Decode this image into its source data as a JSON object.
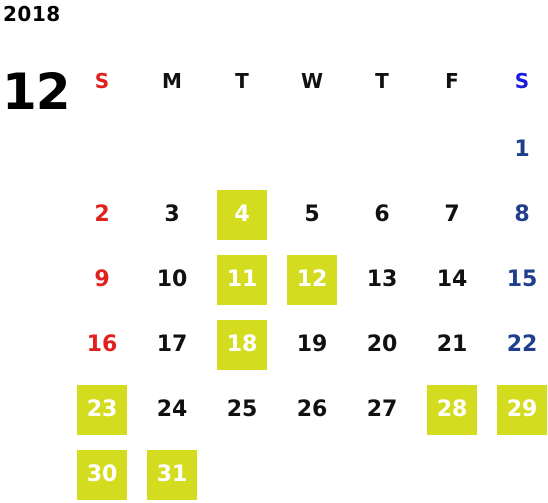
{
  "calendar": {
    "year": "2018",
    "month": "12",
    "highlight_color": "#d4dc1f",
    "sunday_color": "#e0211f",
    "saturday_color": "#1f3e8c",
    "saturday_header_color": "#1a1ae0",
    "weekdays": [
      "S",
      "M",
      "T",
      "W",
      "T",
      "F",
      "S"
    ],
    "weeks": [
      [
        null,
        null,
        null,
        null,
        null,
        null,
        1
      ],
      [
        2,
        3,
        4,
        5,
        6,
        7,
        8
      ],
      [
        9,
        10,
        11,
        12,
        13,
        14,
        15
      ],
      [
        16,
        17,
        18,
        19,
        20,
        21,
        22
      ],
      [
        23,
        24,
        25,
        26,
        27,
        28,
        29
      ],
      [
        30,
        31,
        null,
        null,
        null,
        null,
        null
      ]
    ],
    "highlighted_days": [
      4,
      11,
      12,
      18,
      23,
      28,
      29,
      30,
      31
    ]
  }
}
